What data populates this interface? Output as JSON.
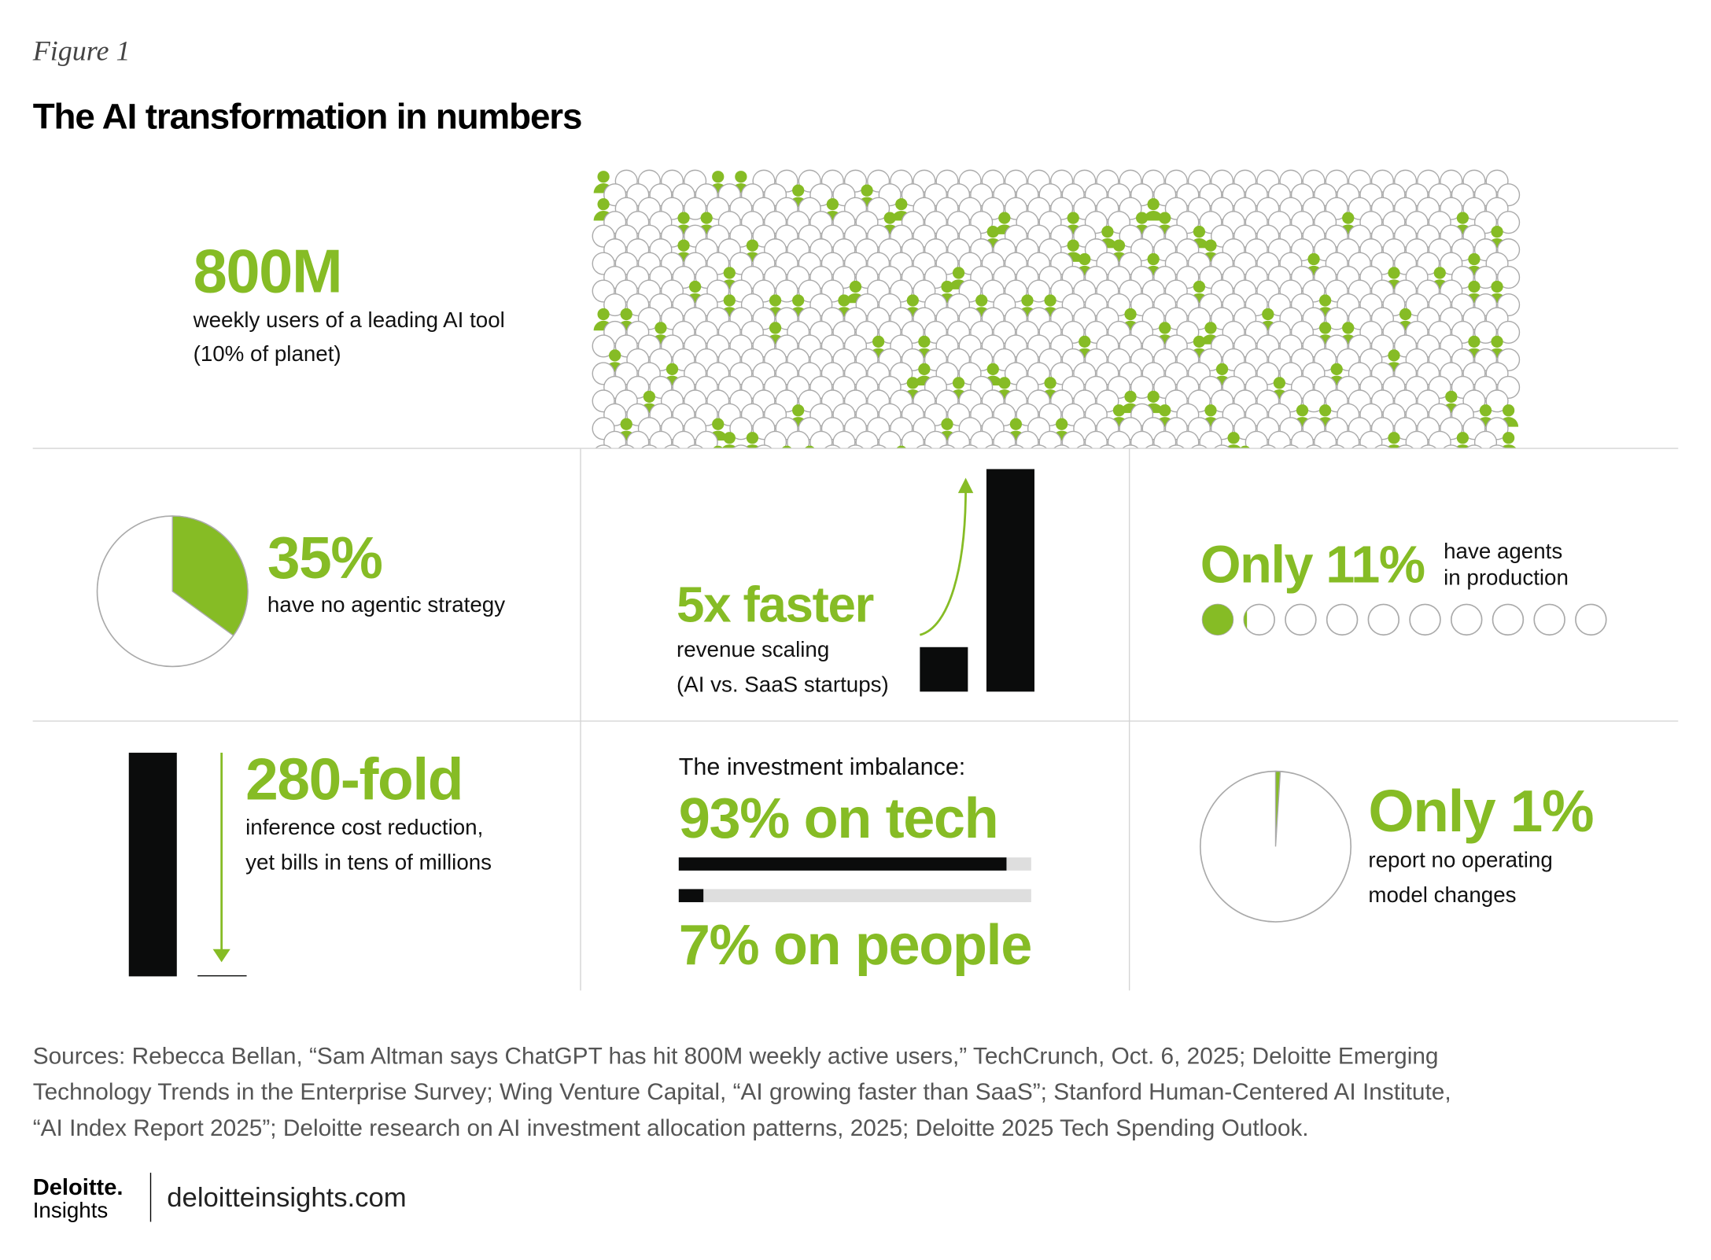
{
  "header": {
    "figure": "Figure 1",
    "title": "The AI transformation in numbers"
  },
  "users": {
    "headline": "800M",
    "line1": "weekly users of a leading AI tool",
    "share": {
      "value": 10,
      "label": "(10% of planet)"
    }
  },
  "strategy": {
    "stat": {
      "value": 35,
      "label": "35%"
    },
    "text": "have no agentic strategy"
  },
  "scaling": {
    "stat": {
      "value": 5,
      "label": "5x faster"
    },
    "lines": [
      "revenue scaling",
      "(AI vs. SaaS startups)"
    ]
  },
  "agents": {
    "stat": {
      "value": 11,
      "label": "Only 11%"
    },
    "lines": [
      "have agents",
      "in production"
    ]
  },
  "inference": {
    "stat": {
      "value": 280,
      "label": "280-fold"
    },
    "lines": [
      "inference cost reduction,",
      "yet bills in tens of millions"
    ]
  },
  "investment": {
    "title": "The investment imbalance:",
    "tech": {
      "value": 93,
      "label": "93% on tech"
    },
    "people": {
      "value": 7,
      "label": "7% on people"
    }
  },
  "operating": {
    "stat": {
      "value": 1,
      "label": "Only 1%"
    },
    "lines": [
      "report no operating",
      "model changes"
    ]
  },
  "sources": [
    "Sources: Rebecca Bellan, “Sam Altman says ChatGPT has hit 800M weekly active users,” TechCrunch, Oct. 6, 2025; Deloitte Emerging",
    "Technology Trends in the Enterprise Survey; Wing Venture Capital, “AI growing faster than SaaS”; Stanford Human-Centered AI Institute,",
    "“AI Index Report 2025”; Deloitte research on AI investment allocation patterns, 2025; Deloitte 2025 Tech Spending Outlook."
  ],
  "footer": {
    "brand": "Deloitte.",
    "sub": "Insights",
    "site": "deloitteinsights.com"
  }
}
